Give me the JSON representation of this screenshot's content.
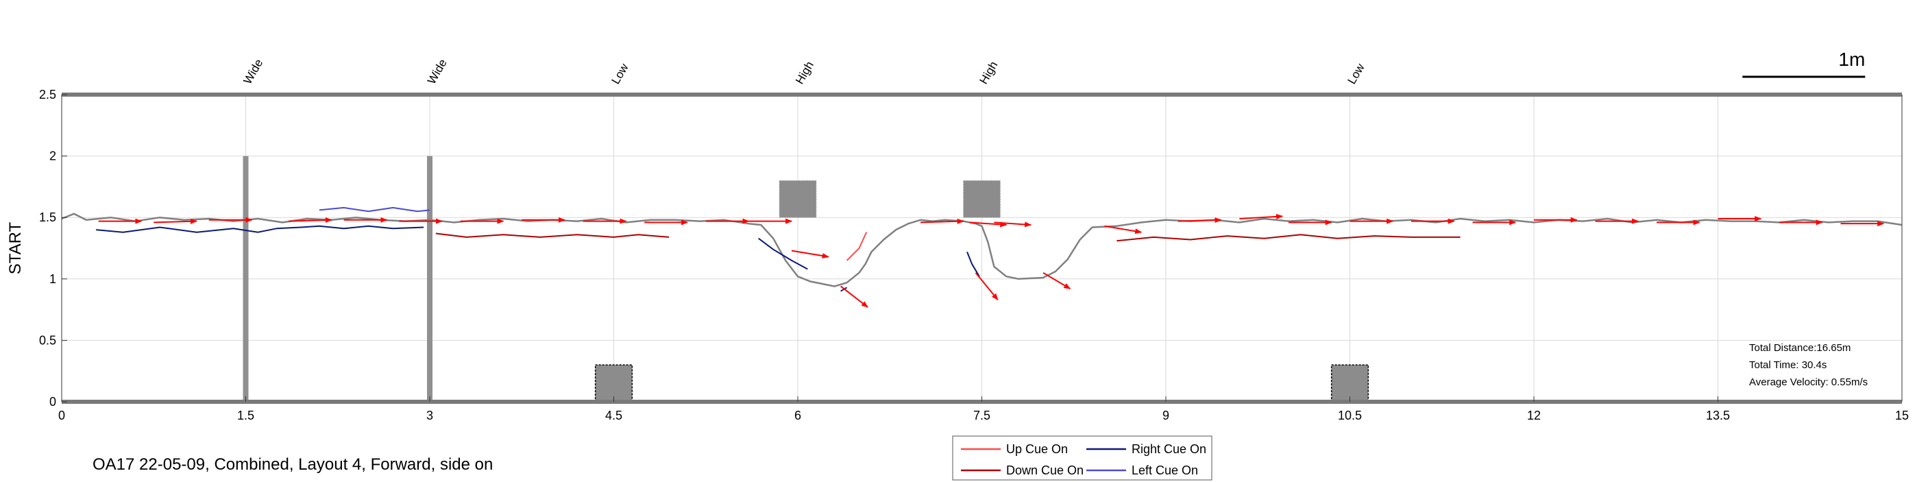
{
  "chart_data": {
    "type": "line",
    "ylabel": "START",
    "xlim": [
      0,
      15
    ],
    "ylim": [
      0,
      2.5
    ],
    "x_ticks": [
      0,
      1.5,
      3,
      4.5,
      6,
      7.5,
      9,
      10.5,
      12,
      13.5,
      15
    ],
    "x_tick_labels": [
      "0",
      "1.5",
      "3",
      "4.5",
      "6",
      "7.5",
      "9",
      "10.5",
      "12",
      "13.5",
      "15"
    ],
    "y_ticks": [
      0,
      0.5,
      1,
      1.5,
      2,
      2.5
    ],
    "y_tick_labels": [
      "0",
      "0.5",
      "1",
      "1.5",
      "2",
      "2.5"
    ],
    "grid": true,
    "scale_bar": {
      "label": "1m",
      "length": 1.0
    },
    "obstacles": [
      {
        "label": "Wide",
        "x": 1.5,
        "type": "wide",
        "y_range": [
          0,
          2
        ]
      },
      {
        "label": "Wide",
        "x": 3.0,
        "type": "wide",
        "y_range": [
          0,
          2
        ]
      },
      {
        "label": "Low",
        "x": 4.5,
        "type": "low",
        "y_range": [
          0,
          0.3
        ]
      },
      {
        "label": "High",
        "x": 6.0,
        "type": "high",
        "y_range": [
          1.5,
          1.8
        ]
      },
      {
        "label": "High",
        "x": 7.5,
        "type": "high",
        "y_range": [
          1.5,
          1.8
        ]
      },
      {
        "label": "Low",
        "x": 10.5,
        "type": "low",
        "y_range": [
          0,
          0.3
        ]
      }
    ],
    "stats": [
      "Total Distance:16.65m",
      "Total Time: 30.4s",
      "Average Velocity: 0.55m/s"
    ],
    "caption": "OA17 22-05-09, Combined, Layout 4, Forward, side on",
    "legend": [
      {
        "label": "Up Cue On",
        "color": "#ff4a4a"
      },
      {
        "label": "Right Cue On",
        "color": "#0a1a7a"
      },
      {
        "label": "Down Cue On",
        "color": "#b00000"
      },
      {
        "label": "Left Cue On",
        "color": "#4a4ad8"
      }
    ],
    "series": [
      {
        "kind": "trajectory",
        "color": "#808080",
        "x": [
          0.0,
          0.1,
          0.2,
          0.4,
          0.6,
          0.8,
          1.0,
          1.2,
          1.4,
          1.6,
          1.8,
          2.0,
          2.2,
          2.4,
          2.6,
          2.8,
          3.0,
          3.2,
          3.4,
          3.6,
          3.8,
          4.0,
          4.2,
          4.4,
          4.6,
          4.8,
          5.0,
          5.2,
          5.4,
          5.6,
          5.7,
          5.8,
          5.9,
          6.0,
          6.1,
          6.3,
          6.4,
          6.5,
          6.55,
          6.6,
          6.7,
          6.8,
          6.9,
          7.0,
          7.1,
          7.2,
          7.35,
          7.45,
          7.5,
          7.55,
          7.6,
          7.7,
          7.8,
          8.0,
          8.1,
          8.2,
          8.3,
          8.4,
          8.6,
          8.8,
          9.0,
          9.2,
          9.4,
          9.6,
          9.8,
          10.0,
          10.2,
          10.4,
          10.6,
          10.8,
          11.0,
          11.2,
          11.4,
          11.6,
          11.8,
          12.0,
          12.2,
          12.4,
          12.6,
          12.8,
          13.0,
          13.2,
          13.4,
          13.6,
          13.8,
          14.0,
          14.2,
          14.4,
          14.6,
          14.8,
          15.0
        ],
        "y": [
          1.49,
          1.53,
          1.48,
          1.5,
          1.47,
          1.5,
          1.48,
          1.49,
          1.47,
          1.49,
          1.46,
          1.49,
          1.48,
          1.5,
          1.48,
          1.47,
          1.48,
          1.46,
          1.48,
          1.49,
          1.47,
          1.48,
          1.47,
          1.49,
          1.46,
          1.48,
          1.48,
          1.47,
          1.48,
          1.45,
          1.44,
          1.33,
          1.15,
          1.02,
          0.98,
          0.94,
          0.97,
          1.05,
          1.12,
          1.22,
          1.32,
          1.4,
          1.45,
          1.48,
          1.47,
          1.48,
          1.47,
          1.45,
          1.43,
          1.3,
          1.1,
          1.02,
          1.0,
          1.01,
          1.06,
          1.16,
          1.32,
          1.42,
          1.43,
          1.46,
          1.48,
          1.47,
          1.48,
          1.46,
          1.49,
          1.47,
          1.48,
          1.46,
          1.49,
          1.47,
          1.48,
          1.46,
          1.49,
          1.47,
          1.48,
          1.46,
          1.48,
          1.47,
          1.49,
          1.46,
          1.48,
          1.46,
          1.48,
          1.47,
          1.47,
          1.46,
          1.48,
          1.46,
          1.47,
          1.47,
          1.44
        ]
      },
      {
        "kind": "cue",
        "cue": "Down Cue On",
        "color": "#b00000",
        "x": [
          3.05,
          3.3,
          3.6,
          3.9,
          4.2,
          4.5,
          4.7,
          4.95
        ],
        "y": [
          1.37,
          1.34,
          1.36,
          1.34,
          1.36,
          1.34,
          1.36,
          1.34
        ]
      },
      {
        "kind": "cue",
        "cue": "Down Cue On",
        "color": "#b00000",
        "x": [
          8.6,
          8.9,
          9.2,
          9.5,
          9.8,
          10.1,
          10.4,
          10.7,
          11.0,
          11.4
        ],
        "y": [
          1.31,
          1.34,
          1.32,
          1.35,
          1.33,
          1.36,
          1.33,
          1.35,
          1.34,
          1.34
        ]
      },
      {
        "kind": "cue",
        "cue": "Right Cue On",
        "color": "#0a1a7a",
        "x": [
          0.28,
          0.5,
          0.8,
          1.1,
          1.4,
          1.6,
          1.75,
          1.95,
          2.1,
          2.3,
          2.5,
          2.7,
          2.95
        ],
        "y": [
          1.4,
          1.38,
          1.42,
          1.38,
          1.41,
          1.38,
          1.41,
          1.42,
          1.43,
          1.41,
          1.43,
          1.41,
          1.42
        ]
      },
      {
        "kind": "cue",
        "cue": "Right Cue On",
        "color": "#0a1a7a",
        "x": [
          5.68,
          5.8,
          5.95,
          6.08
        ],
        "y": [
          1.33,
          1.24,
          1.15,
          1.08
        ]
      },
      {
        "kind": "cue",
        "cue": "Right Cue On",
        "color": "#0a1a7a",
        "x": [
          6.35,
          6.4
        ],
        "y": [
          0.9,
          0.93
        ]
      },
      {
        "kind": "cue",
        "cue": "Right Cue On",
        "color": "#0a1a7a",
        "x": [
          7.38,
          7.42,
          7.48
        ],
        "y": [
          1.22,
          1.12,
          1.02
        ]
      },
      {
        "kind": "cue",
        "cue": "Left Cue On",
        "color": "#4a4ad8",
        "x": [
          2.1,
          2.3,
          2.5,
          2.7,
          2.9,
          3.0
        ],
        "y": [
          1.56,
          1.58,
          1.55,
          1.58,
          1.55,
          1.56
        ]
      },
      {
        "kind": "cue",
        "cue": "Up Cue On",
        "color": "#ff4a4a",
        "x": [
          6.4,
          6.5,
          6.56
        ],
        "y": [
          1.15,
          1.25,
          1.38
        ]
      },
      {
        "kind": "arrows",
        "color": "#ff0000",
        "x": [
          0.3,
          0.75,
          1.2,
          1.85,
          2.3,
          2.75,
          3.25,
          3.75,
          4.25,
          4.75,
          5.25,
          5.6,
          5.95,
          6.35,
          7.0,
          7.4,
          7.45,
          7.6,
          8.0,
          8.5,
          9.1,
          9.6,
          10.0,
          10.5,
          11.0,
          11.5,
          12.0,
          12.5,
          13.0,
          13.5,
          14.0,
          14.5
        ],
        "y": [
          1.47,
          1.46,
          1.48,
          1.47,
          1.48,
          1.47,
          1.47,
          1.48,
          1.47,
          1.46,
          1.47,
          1.47,
          1.23,
          0.94,
          1.46,
          1.46,
          1.05,
          1.46,
          1.05,
          1.43,
          1.47,
          1.49,
          1.46,
          1.47,
          1.47,
          1.46,
          1.48,
          1.47,
          1.46,
          1.49,
          1.46,
          1.45
        ],
        "dx": [
          0.35,
          0.35,
          0.35,
          0.35,
          0.35,
          0.35,
          0.35,
          0.35,
          0.35,
          0.35,
          0.35,
          0.35,
          0.3,
          0.22,
          0.35,
          0.3,
          0.18,
          0.3,
          0.22,
          0.3,
          0.35,
          0.35,
          0.35,
          0.35,
          0.35,
          0.35,
          0.35,
          0.35,
          0.35,
          0.35,
          0.35,
          0.35
        ],
        "dy": [
          0.0,
          0.01,
          0.0,
          0.01,
          0.0,
          0.0,
          0.0,
          0.0,
          0.0,
          0.0,
          0.0,
          0.0,
          -0.05,
          -0.17,
          0.01,
          -0.02,
          -0.22,
          -0.02,
          -0.13,
          -0.05,
          0.01,
          0.02,
          0.0,
          0.0,
          0.0,
          0.0,
          0.0,
          0.0,
          0.0,
          0.0,
          0.0,
          0.0
        ]
      }
    ]
  }
}
